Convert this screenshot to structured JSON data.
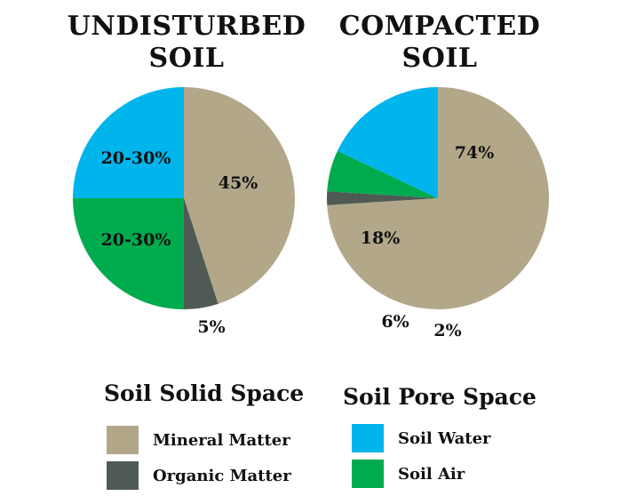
{
  "colors": {
    "mineral": "#b2a889",
    "organic": "#4f5a55",
    "water": "#00b5ec",
    "air": "#00ab4e"
  },
  "chart_data": [
    {
      "type": "pie",
      "title": "UNDISTURBED\nSOIL",
      "slices": [
        {
          "category": "Mineral Matter",
          "label": "45%",
          "value": 45,
          "color_key": "mineral"
        },
        {
          "category": "Organic Matter",
          "label": "5%",
          "value": 5,
          "color_key": "organic"
        },
        {
          "category": "Soil Air",
          "label": "20-30%",
          "value": 25,
          "color_key": "air"
        },
        {
          "category": "Soil Water",
          "label": "20-30%",
          "value": 25,
          "color_key": "water"
        }
      ]
    },
    {
      "type": "pie",
      "title": "COMPACTED\nSOIL",
      "slices": [
        {
          "category": "Mineral Matter",
          "label": "74%",
          "value": 74,
          "color_key": "mineral"
        },
        {
          "category": "Organic Matter",
          "label": "2%",
          "value": 2,
          "color_key": "organic"
        },
        {
          "category": "Soil Air",
          "label": "6%",
          "value": 6,
          "color_key": "air"
        },
        {
          "category": "Soil Water",
          "label": "18%",
          "value": 18,
          "color_key": "water"
        }
      ]
    }
  ],
  "legend": {
    "solid_heading": "Soil Solid Space",
    "pore_heading": "Soil Pore Space",
    "mineral_label": "Mineral Matter",
    "organic_label": "Organic Matter",
    "water_label": "Soil Water",
    "air_label": "Soil Air"
  }
}
